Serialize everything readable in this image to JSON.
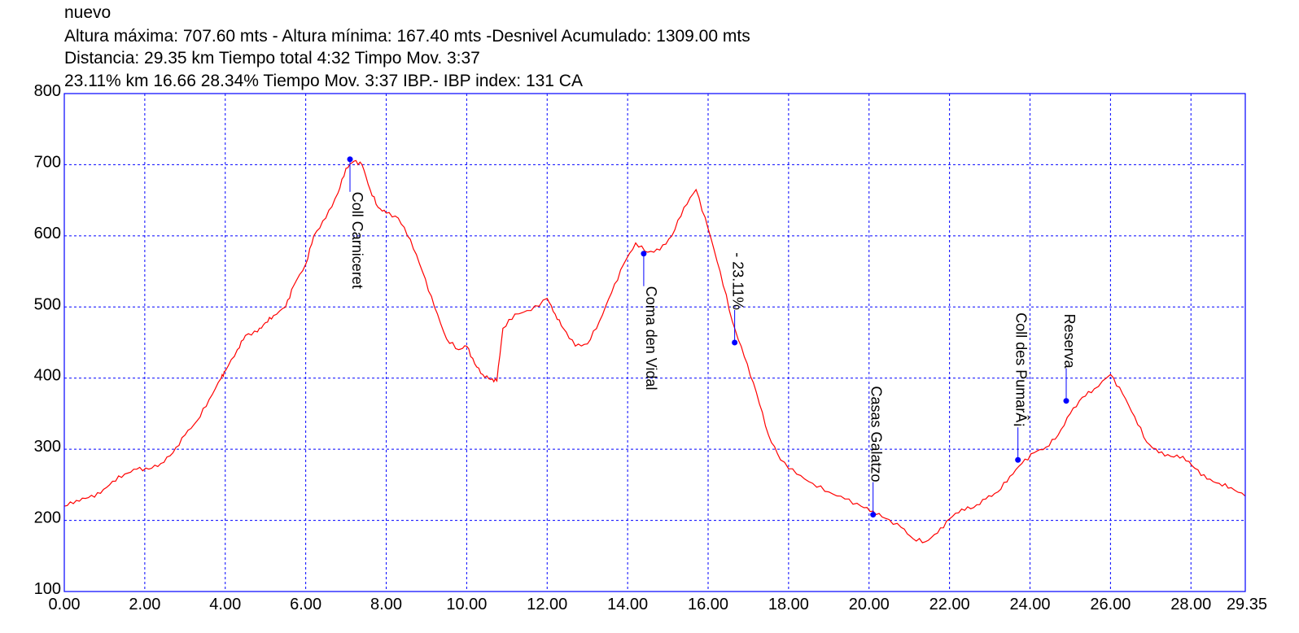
{
  "header": {
    "title": "nuevo",
    "line1": "Altura máxima: 707.60 mts - Altura mínima: 167.40 mts -Desnivel Acumulado: 1309.00 mts",
    "line2": "Distancia: 29.35 km  Tiempo total 4:32 Timpo Mov. 3:37",
    "line3": "23.11% km 16.66  28.34%  Tiempo Mov. 3:37 IBP.- IBP index: 131 CA"
  },
  "colors": {
    "profile": "#ff0000",
    "grid": "#0000ff",
    "frame": "#0000ff",
    "waypoint": "#0000ff"
  },
  "chart_data": {
    "type": "line",
    "xlabel": "",
    "ylabel": "",
    "xlim": [
      0,
      29.35
    ],
    "ylim": [
      100,
      800
    ],
    "x_ticks": [
      "0.00",
      "2.00",
      "4.00",
      "6.00",
      "8.00",
      "10.00",
      "12.00",
      "14.00",
      "16.00",
      "18.00",
      "20.00",
      "22.00",
      "24.00",
      "26.00",
      "28.00",
      "29.35"
    ],
    "y_ticks": [
      "100",
      "200",
      "300",
      "400",
      "500",
      "600",
      "700",
      "800"
    ],
    "grid": true,
    "series": [
      {
        "x": [
          0,
          0.3,
          0.6,
          0.9,
          1.2,
          1.5,
          1.8,
          2.1,
          2.4,
          2.7,
          3.0,
          3.3,
          3.6,
          3.9,
          4.0,
          4.3,
          4.5,
          4.8,
          5.0,
          5.2,
          5.5,
          5.7,
          6.0,
          6.2,
          6.5,
          6.8,
          7.0,
          7.2,
          7.4,
          7.6,
          7.8,
          8.0,
          8.3,
          8.6,
          8.9,
          9.2,
          9.5,
          9.8,
          10.0,
          10.2,
          10.4,
          10.6,
          10.75,
          10.9,
          11.2,
          11.6,
          12.0,
          12.2,
          12.4,
          12.7,
          13.0,
          13.3,
          13.6,
          13.9,
          14.2,
          14.5,
          14.8,
          15.1,
          15.4,
          15.7,
          16.0,
          16.3,
          16.6,
          16.9,
          17.2,
          17.5,
          17.8,
          18.2,
          18.6,
          19.0,
          19.4,
          19.8,
          20.1,
          20.4,
          20.8,
          21.1,
          21.4,
          21.7,
          22.0,
          22.3,
          22.6,
          22.9,
          23.2,
          23.5,
          23.8,
          24.1,
          24.4,
          24.7,
          25.0,
          25.3,
          25.6,
          26.0,
          26.3,
          26.6,
          26.9,
          27.2,
          27.5,
          27.8,
          28.1,
          28.4,
          28.7,
          29.0,
          29.35
        ],
        "y": [
          220,
          228,
          232,
          238,
          255,
          265,
          272,
          272,
          280,
          295,
          320,
          340,
          370,
          400,
          410,
          440,
          460,
          465,
          478,
          488,
          500,
          530,
          560,
          600,
          625,
          660,
          695,
          705,
          700,
          665,
          640,
          632,
          625,
          595,
          550,
          500,
          455,
          440,
          445,
          420,
          405,
          398,
          396,
          470,
          490,
          495,
          512,
          490,
          470,
          445,
          448,
          480,
          520,
          560,
          590,
          577,
          580,
          600,
          640,
          665,
          610,
          550,
          480,
          430,
          380,
          320,
          285,
          265,
          252,
          240,
          230,
          220,
          213,
          203,
          190,
          174,
          170,
          182,
          202,
          216,
          218,
          230,
          240,
          262,
          280,
          295,
          303,
          320,
          350,
          373,
          385,
          405,
          378,
          346,
          310,
          295,
          290,
          290,
          273,
          258,
          252,
          246,
          234
        ]
      }
    ],
    "annotations": [
      {
        "label": "Coll Carniceret",
        "x": 7.1,
        "y": 707.6
      },
      {
        "label": "Coma den Vidal",
        "x": 14.4,
        "y": 575
      },
      {
        "label": "- 23.11%",
        "x": 16.66,
        "y": 450
      },
      {
        "label": "Casas Galatzo",
        "x": 20.1,
        "y": 208
      },
      {
        "label": "Coll des PumarÂ¡",
        "x": 23.7,
        "y": 285
      },
      {
        "label": "Reserva",
        "x": 24.9,
        "y": 368
      }
    ]
  }
}
